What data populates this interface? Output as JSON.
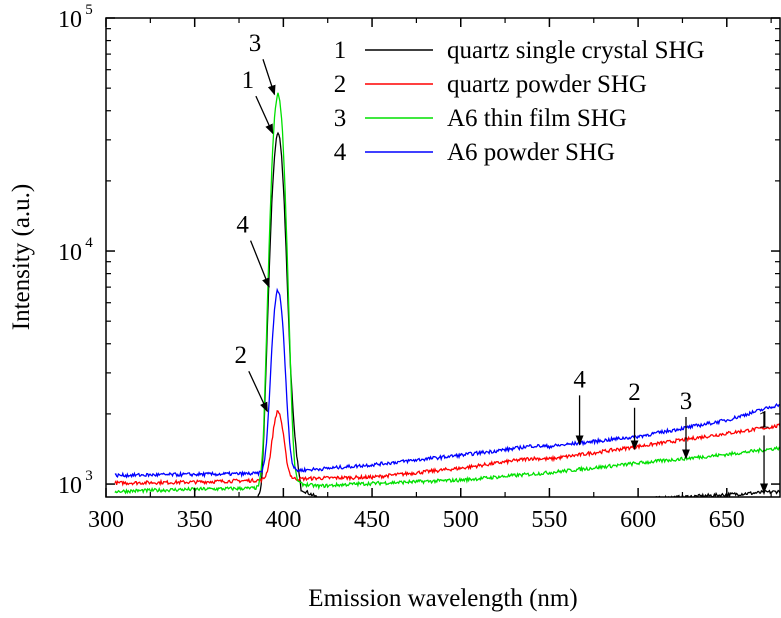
{
  "chart_data": {
    "type": "line",
    "title": "",
    "xlabel": "Emission wavelength (nm)",
    "ylabel": "Intensity (a.u.)",
    "xlim": [
      300,
      680
    ],
    "ylim": [
      880,
      100000
    ],
    "yscale": "log",
    "grid": false,
    "legend_position": "top-right",
    "x_ticks": [
      "300",
      "350",
      "400",
      "450",
      "500",
      "550",
      "600",
      "650"
    ],
    "y_ticks": [
      {
        "value": 1000,
        "base": "10",
        "exp": "3"
      },
      {
        "value": 10000,
        "base": "10",
        "exp": "4"
      },
      {
        "value": 100000,
        "base": "10",
        "exp": "5"
      }
    ],
    "series": [
      {
        "name": "quartz single crystal SHG",
        "number": "1",
        "color": "#000000",
        "peak": 32000,
        "width": 4,
        "x": [
          305,
          380,
          388,
          392,
          405,
          410,
          420,
          430,
          500,
          550,
          600,
          650,
          680
        ],
        "y": [
          780,
          810,
          900,
          1900,
          1800,
          950,
          870,
          820,
          830,
          840,
          860,
          900,
          930
        ]
      },
      {
        "name": "quartz powder SHG",
        "number": "2",
        "color": "#ff0000",
        "peak": 2050,
        "width": 4,
        "x": [
          305,
          350,
          390,
          405,
          420,
          450,
          500,
          530,
          540,
          550,
          600,
          650,
          680
        ],
        "y": [
          1010,
          1020,
          1040,
          1050,
          1060,
          1070,
          1170,
          1260,
          1290,
          1280,
          1450,
          1650,
          1780
        ]
      },
      {
        "name": "A6 thin film SHG",
        "number": "3",
        "color": "#00e000",
        "peak": 47000,
        "width": 4,
        "x": [
          305,
          350,
          385,
          390,
          400,
          410,
          420,
          440,
          500,
          550,
          600,
          650,
          680
        ],
        "y": [
          930,
          950,
          960,
          1000,
          1100,
          1000,
          980,
          1000,
          1040,
          1120,
          1230,
          1340,
          1430
        ]
      },
      {
        "name": "A6 powder SHG",
        "number": "4",
        "color": "#0000ff",
        "peak": 6800,
        "width": 4,
        "x": [
          305,
          350,
          390,
          405,
          420,
          450,
          500,
          530,
          540,
          550,
          600,
          650,
          680
        ],
        "y": [
          1090,
          1100,
          1110,
          1140,
          1160,
          1210,
          1330,
          1420,
          1460,
          1450,
          1600,
          1880,
          2200
        ]
      }
    ],
    "annotations": [
      {
        "text": "3",
        "x": 384,
        "y": 72000,
        "arrow_to": [
          395,
          47000
        ]
      },
      {
        "text": "1",
        "x": 380,
        "y": 50000,
        "arrow_to": [
          394,
          32000
        ]
      },
      {
        "text": "4",
        "x": 377,
        "y": 12000,
        "arrow_to": [
          392,
          7000
        ]
      },
      {
        "text": "2",
        "x": 376,
        "y": 3300,
        "arrow_to": [
          391,
          2050
        ]
      },
      {
        "text": "4",
        "x": 567,
        "y": 2600,
        "arrow_to": [
          567,
          1480
        ]
      },
      {
        "text": "2",
        "x": 598,
        "y": 2300,
        "arrow_to": [
          598,
          1410
        ]
      },
      {
        "text": "3",
        "x": 627,
        "y": 2100,
        "arrow_to": [
          627,
          1290
        ]
      },
      {
        "text": "1",
        "x": 671,
        "y": 1750,
        "arrow_to": [
          671,
          920
        ]
      }
    ]
  }
}
